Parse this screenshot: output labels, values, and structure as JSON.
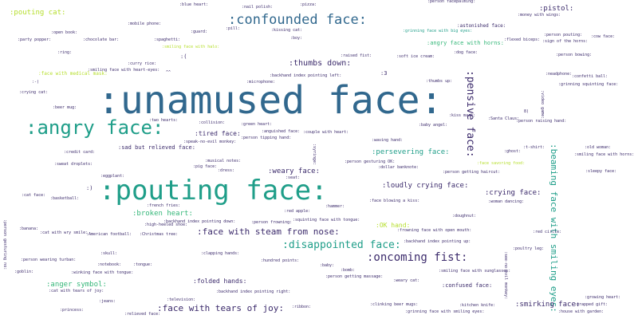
{
  "palette": {
    "navy": "#3b2a6b",
    "blue": "#31688e",
    "teal": "#1f9e89",
    "green": "#35b779",
    "lime": "#b5de2b",
    "dark": "#440154"
  },
  "words": [
    {
      "id": "unamused-face",
      "text": ":unamused face:",
      "color": "#31688e"
    },
    {
      "id": "pouting-face",
      "text": ":pouting face:",
      "color": "#1f9e89"
    },
    {
      "id": "angry-face",
      "text": ":angry face:",
      "color": "#1f9e89"
    },
    {
      "id": "confounded-face",
      "text": ":confounded face:",
      "color": "#31688e"
    },
    {
      "id": "pensive-face",
      "text": ":pensive face:",
      "color": "#3b2a6b"
    },
    {
      "id": "beaming-face",
      "text": ":beaming face with smiling eyes:",
      "color": "#1f9e89"
    },
    {
      "id": "oncoming-fist",
      "text": ":oncoming fist:",
      "color": "#3b2a6b"
    },
    {
      "id": "disappointed-face",
      "text": ":disappointed face:",
      "color": "#1f9e89"
    },
    {
      "id": "face-steam",
      "text": ":face with steam from nose:",
      "color": "#3b2a6b"
    },
    {
      "id": "face-tears-joy",
      "text": ":face with tears of joy:",
      "color": "#3b2a6b"
    },
    {
      "id": "pouting-cat",
      "text": ":pouting cat:",
      "color": "#b5de2b"
    },
    {
      "id": "thumbs-down",
      "text": ":thumbs down:",
      "color": "#3b2a6b"
    },
    {
      "id": "pistol",
      "text": ":pistol:",
      "color": "#3b2a6b"
    },
    {
      "id": "broken-heart",
      "text": ":broken heart:",
      "color": "#35b779"
    },
    {
      "id": "crying-face",
      "text": ":crying face:",
      "color": "#3b2a6b"
    },
    {
      "id": "smirking-face",
      "text": ":smirking face:",
      "color": "#3b2a6b"
    },
    {
      "id": "anger-symbol",
      "text": ":anger symbol:",
      "color": "#35b779"
    },
    {
      "id": "loudly-crying",
      "text": ":loudly crying face:",
      "color": "#3b2a6b"
    },
    {
      "id": "persevering",
      "text": ":persevering face:",
      "color": "#1f9e89"
    },
    {
      "id": "weary-face",
      "text": ":weary face:",
      "color": "#3b2a6b"
    },
    {
      "id": "tired-face",
      "text": ":tired face:",
      "color": "#3b2a6b"
    },
    {
      "id": "ok-hand",
      "text": ":OK hand:",
      "color": "#b5de2b"
    },
    {
      "id": "folded-hands",
      "text": ":folded hands:",
      "color": "#3b2a6b"
    },
    {
      "id": "confused-face",
      "text": ":confused face:",
      "color": "#3b2a6b"
    },
    {
      "id": "sad-relieved",
      "text": ":sad but relieved face:",
      "color": "#3b2a6b"
    },
    {
      "id": "angry-horns",
      "text": ":angry face with horns:",
      "color": "#35b779"
    },
    {
      "id": "astonished",
      "text": ":astonished face:",
      "color": "#3b2a6b"
    },
    {
      "id": "grin-big-eyes",
      "text": ":grinning face with big eyes:",
      "color": "#1f9e89"
    },
    {
      "id": "medical-mask",
      "text": ":face with medical mask:",
      "color": "#b5de2b"
    },
    {
      "id": "heart-eyes",
      "text": ":smiling face with heart-eyes:",
      "color": "#3b2a6b"
    },
    {
      "id": "halo",
      "text": ":smiling face with halo:",
      "color": "#b5de2b"
    },
    {
      "id": "backhand-left",
      "text": ":backhand index pointing left:",
      "color": "#3b2a6b"
    },
    {
      "id": "crying-cat",
      "text": ":crying cat:",
      "color": "#3b2a6b"
    },
    {
      "id": "beer-mug",
      "text": ":beer mug:",
      "color": "#3b2a6b"
    },
    {
      "id": "credit-card",
      "text": ":credit card:",
      "color": "#3b2a6b"
    },
    {
      "id": "person-tipping",
      "text": ":person tipping hand:",
      "color": "#3b2a6b"
    },
    {
      "id": "waving-hand",
      "text": ":waving hand:",
      "color": "#3b2a6b"
    },
    {
      "id": "couple-heart",
      "text": ":couple with heart:",
      "color": "#3b2a6b"
    },
    {
      "id": "anguished",
      "text": ":anguished face:",
      "color": "#3b2a6b"
    },
    {
      "id": "green-heart",
      "text": ":green heart:",
      "color": "#3b2a6b"
    },
    {
      "id": "collision",
      "text": ":collision:",
      "color": "#3b2a6b"
    },
    {
      "id": "two-hearts",
      "text": ":two hearts:",
      "color": "#3b2a6b"
    },
    {
      "id": "speak-no-evil",
      "text": ":speak-no-evil monkey:",
      "color": "#3b2a6b"
    },
    {
      "id": "kissing-cat",
      "text": ":kissing cat:",
      "color": "#3b2a6b"
    },
    {
      "id": "pill",
      "text": ":pill:",
      "color": "#3b2a6b"
    },
    {
      "id": "guard",
      "text": ":guard:",
      "color": "#3b2a6b"
    },
    {
      "id": "spaghetti",
      "text": ":spaghetti:",
      "color": "#3b2a6b"
    },
    {
      "id": "curry-rice",
      "text": ":curry rice:",
      "color": "#3b2a6b"
    },
    {
      "id": "microphone",
      "text": ":microphone:",
      "color": "#3b2a6b"
    },
    {
      "id": "raised-fist",
      "text": ":raised fist:",
      "color": "#3b2a6b"
    },
    {
      "id": "soft-ice",
      "text": ":soft ice cream:",
      "color": "#3b2a6b"
    },
    {
      "id": "dog-face",
      "text": ":dog face:",
      "color": "#3b2a6b"
    },
    {
      "id": "person-pouting",
      "text": ":person pouting:",
      "color": "#3b2a6b"
    },
    {
      "id": "flexed-biceps",
      "text": ":flexed biceps:",
      "color": "#3b2a6b"
    },
    {
      "id": "horns",
      "text": ":sign of the horns:",
      "color": "#3b2a6b"
    },
    {
      "id": "person-bowing",
      "text": ":person bowing:",
      "color": "#3b2a6b"
    },
    {
      "id": "neadphone",
      "text": ":neadphone:",
      "color": "#3b2a6b"
    },
    {
      "id": "confetti",
      "text": ":confetti ball:",
      "color": "#3b2a6b"
    },
    {
      "id": "grin-squint",
      "text": ":grinning squinting face:",
      "color": "#3b2a6b"
    },
    {
      "id": "person-raising",
      "text": ":person raising hand:",
      "color": "#3b2a6b"
    },
    {
      "id": "santa",
      "text": ":Santa Claus:",
      "color": "#3b2a6b"
    },
    {
      "id": "baby-angel",
      "text": ":baby angel:",
      "color": "#3b2a6b"
    },
    {
      "id": "thumbs-up",
      "text": ":thumbs up:",
      "color": "#3b2a6b"
    },
    {
      "id": "ghost",
      "text": ":ghost:",
      "color": "#3b2a6b"
    },
    {
      "id": "t-shirt",
      "text": ":t-shirt:",
      "color": "#3b2a6b"
    },
    {
      "id": "old-woman",
      "text": ":old woman:",
      "color": "#3b2a6b"
    },
    {
      "id": "smiling-horns",
      "text": ":smiling face with horns:",
      "color": "#3b2a6b"
    },
    {
      "id": "sleepy-face",
      "text": ":sleepy face:",
      "color": "#3b2a6b"
    },
    {
      "id": "face-savoring",
      "text": ":face savoring food:",
      "color": "#b5de2b"
    },
    {
      "id": "haircut",
      "text": ":person getting haircut:",
      "color": "#3b2a6b"
    },
    {
      "id": "woman-dancing",
      "text": ":woman dancing:",
      "color": "#3b2a6b"
    },
    {
      "id": "dollar",
      "text": ":dollar banknote:",
      "color": "#3b2a6b"
    },
    {
      "id": "gesturing-ok",
      "text": ":person gesturing OK:",
      "color": "#3b2a6b"
    },
    {
      "id": "seat",
      "text": ":seat:",
      "color": "#3b2a6b"
    },
    {
      "id": "blowing-kiss",
      "text": ":face blowing a kiss:",
      "color": "#3b2a6b"
    },
    {
      "id": "hammer",
      "text": ":hammer:",
      "color": "#3b2a6b"
    },
    {
      "id": "doughnut",
      "text": ":doughnut:",
      "color": "#3b2a6b"
    },
    {
      "id": "red-apple",
      "text": ":red apple:",
      "color": "#3b2a6b"
    },
    {
      "id": "squinting-tongue",
      "text": ":squinting face with tongue:",
      "color": "#3b2a6b"
    },
    {
      "id": "person-frowning",
      "text": ":person frowning:",
      "color": "#3b2a6b"
    },
    {
      "id": "frowning-open",
      "text": ":frowning face with open mouth:",
      "color": "#3b2a6b"
    },
    {
      "id": "backhand-up",
      "text": ":backhand index pointing up:",
      "color": "#3b2a6b"
    },
    {
      "id": "red-circle",
      "text": ":red circle:",
      "color": "#3b2a6b"
    },
    {
      "id": "poultry-leg",
      "text": ":poultry leg:",
      "color": "#3b2a6b"
    },
    {
      "id": "sunglasses",
      "text": ":smiling face with sunglasses:",
      "color": "#3b2a6b"
    },
    {
      "id": "clapping",
      "text": ":clapping hands:",
      "color": "#3b2a6b"
    },
    {
      "id": "hundred",
      "text": ":hundred points:",
      "color": "#3b2a6b"
    },
    {
      "id": "baby",
      "text": ":baby:",
      "color": "#3b2a6b"
    },
    {
      "id": "bomb",
      "text": ":bomb:",
      "color": "#3b2a6b"
    },
    {
      "id": "massage",
      "text": ":person getting massage:",
      "color": "#3b2a6b"
    },
    {
      "id": "weary-cat",
      "text": ":weary cat:",
      "color": "#3b2a6b"
    },
    {
      "id": "backhand-right",
      "text": ":backhand index pointing right:",
      "color": "#3b2a6b"
    },
    {
      "id": "backhand-down",
      "text": ":backhand index pointing down:",
      "color": "#3b2a6b"
    },
    {
      "id": "christmas-tree",
      "text": ":Christmas tree:",
      "color": "#3b2a6b"
    },
    {
      "id": "american-football",
      "text": ":American football:",
      "color": "#3b2a6b"
    },
    {
      "id": "high-heeled",
      "text": ":high-heeled shoe:",
      "color": "#3b2a6b"
    },
    {
      "id": "french-fries",
      "text": ":french fries:",
      "color": "#3b2a6b"
    },
    {
      "id": "skull",
      "text": ":skull:",
      "color": "#3b2a6b"
    },
    {
      "id": "notebook",
      "text": ":notebook:",
      "color": "#3b2a6b"
    },
    {
      "id": "tongue",
      "text": ":tongue:",
      "color": "#3b2a6b"
    },
    {
      "id": "winking-tongue",
      "text": ":winking face with tongue:",
      "color": "#3b2a6b"
    },
    {
      "id": "tears-of-joy-cat",
      "text": ":cat with tears of joy:",
      "color": "#3b2a6b"
    },
    {
      "id": "television",
      "text": ":television:",
      "color": "#3b2a6b"
    },
    {
      "id": "jeans",
      "text": ":jeans:",
      "color": "#3b2a6b"
    },
    {
      "id": "princess",
      "text": ":princess:",
      "color": "#3b2a6b"
    },
    {
      "id": "relieved",
      "text": ":relieved face:",
      "color": "#3b2a6b"
    },
    {
      "id": "ribbon",
      "text": ":ribbon:",
      "color": "#3b2a6b"
    },
    {
      "id": "clinking",
      "text": ":clinking beer mugs:",
      "color": "#3b2a6b"
    },
    {
      "id": "kitchen-knife",
      "text": ":kitchen knife:",
      "color": "#3b2a6b"
    },
    {
      "id": "grin-smiling-eyes",
      "text": ":grinning face with smiling eyes:",
      "color": "#3b2a6b"
    },
    {
      "id": "wrapped-gift",
      "text": ":wrapped gift:",
      "color": "#3b2a6b"
    },
    {
      "id": "house-garden",
      "text": ":house with garden:",
      "color": "#3b2a6b"
    },
    {
      "id": "growing-heart",
      "text": ":growing heart:",
      "color": "#3b2a6b"
    },
    {
      "id": "party-popper",
      "text": ":party popper:",
      "color": "#3b2a6b"
    },
    {
      "id": "open-book",
      "text": ":open book:",
      "color": "#3b2a6b"
    },
    {
      "id": "chocolate-bar",
      "text": ":chocolate bar:",
      "color": "#3b2a6b"
    },
    {
      "id": "ring",
      "text": ":ring:",
      "color": "#3b2a6b"
    },
    {
      "id": "mobile-phone",
      "text": ":mobile phone:",
      "color": "#3b2a6b"
    },
    {
      "id": "blue-heart",
      "text": ":blue heart:",
      "color": "#3b2a6b"
    },
    {
      "id": "nail-polish",
      "text": ":nail polish:",
      "color": "#3b2a6b"
    },
    {
      "id": "pizza",
      "text": ":pizza:",
      "color": "#3b2a6b"
    },
    {
      "id": "money-wings",
      "text": ":money with wings:",
      "color": "#3b2a6b"
    },
    {
      "id": "cow-face",
      "text": ":cow face:",
      "color": "#3b2a6b"
    },
    {
      "id": "boy",
      "text": ":boy:",
      "color": "#3b2a6b"
    },
    {
      "id": "see-no-evil",
      "text": ":see-no-evil monkey:",
      "color": "#3b2a6b"
    },
    {
      "id": "person-facepalming",
      "text": ":person facepalming:",
      "color": "#3b2a6b"
    },
    {
      "id": "cat-wry",
      "text": ":cat with wry smile:",
      "color": "#3b2a6b"
    },
    {
      "id": "banana",
      "text": ":banana:",
      "color": "#3b2a6b"
    },
    {
      "id": "goblin",
      "text": ":goblin:",
      "color": "#3b2a6b"
    },
    {
      "id": "turban",
      "text": ":person wearing turban:",
      "color": "#3b2a6b"
    },
    {
      "id": "person-gesturing-no",
      "text": ":person gesturing no:",
      "color": "#3b2a6b"
    },
    {
      "id": "dress",
      "text": ":dress:",
      "color": "#3b2a6b"
    },
    {
      "id": "pig-face",
      "text": ":pig face:",
      "color": "#3b2a6b"
    },
    {
      "id": "musical-notes",
      "text": ":musical notes:",
      "color": "#3b2a6b"
    },
    {
      "id": "can-face",
      "text": ":cat face:",
      "color": "#3b2a6b"
    },
    {
      "id": "sweat-droplets",
      "text": ":sweat droplets:",
      "color": "#3b2a6b"
    },
    {
      "id": "eggplant",
      "text": ":eggplant:",
      "color": "#3b2a6b"
    },
    {
      "id": "basketball",
      "text": ":basketball:",
      "color": "#3b2a6b"
    },
    {
      "id": "syringe",
      "text": ":syringe:",
      "color": "#3b2a6b"
    },
    {
      "id": "video-game",
      "text": ":video game:",
      "color": "#3b2a6b"
    },
    {
      "id": "kiss-mark",
      "text": ":kiss mark:",
      "color": "#3b2a6b"
    },
    {
      "id": "emo-paren",
      "text": ":)",
      "color": "#3b2a6b"
    },
    {
      "id": "emo-three",
      "text": ":3",
      "color": "#3b2a6b"
    },
    {
      "id": "emo-caret",
      "text": "^^",
      "color": "#3b2a6b"
    },
    {
      "id": "emo-paren-open",
      "text": ":(",
      "color": "#3b2a6b"
    },
    {
      "id": "emo-paren-2",
      "text": ":-)",
      "color": "#3b2a6b"
    },
    {
      "id": "emo-d",
      "text": "8)",
      "color": "#3b2a6b"
    }
  ]
}
